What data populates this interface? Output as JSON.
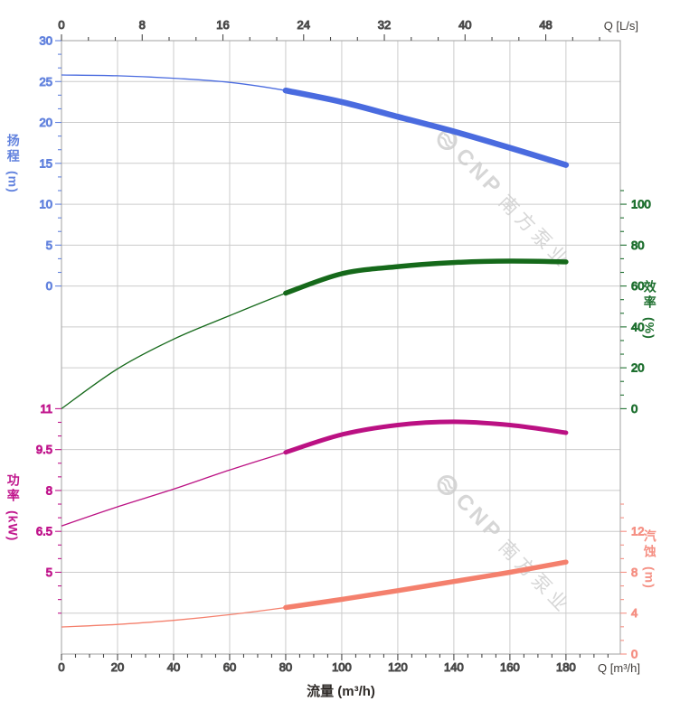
{
  "watermark": {
    "text_brand": "CNP",
    "text_company": "南方泵业"
  },
  "axes": {
    "top": {
      "title": "Q [L/s]",
      "tick_labels": [
        0,
        8,
        16,
        24,
        32,
        40,
        48
      ],
      "max_Ls": 55.4,
      "label_color": "#3f3b38"
    },
    "bottom": {
      "axis_title": "Q [m³/h]",
      "xlabel": "流量 (m³/h)",
      "tick_labels": [
        0,
        20,
        40,
        60,
        80,
        100,
        120,
        140,
        160,
        180
      ],
      "max": 199.4,
      "label_color": "#3f3b38"
    },
    "head": {
      "title": "扬程",
      "unit": "(m)",
      "tick_labels": [
        30,
        25,
        20,
        15,
        10,
        5,
        0
      ],
      "range": [
        0,
        30
      ],
      "color": "#6383de",
      "curve_color": "#4a6bdf"
    },
    "efficiency": {
      "title": "效率",
      "unit": "(%)",
      "tick_labels": [
        100,
        80,
        60,
        40,
        20,
        0
      ],
      "range": [
        0,
        100
      ],
      "color": "#1f7030",
      "curve_color": "#15691a"
    },
    "power": {
      "title": "功率",
      "unit": "(kW)",
      "tick_labels": [
        11,
        9.5,
        8,
        6.5,
        5
      ],
      "range": [
        5,
        11
      ],
      "color": "#c0158c",
      "curve_color": "#bb1183"
    },
    "npsh": {
      "title": "汽蚀",
      "unit": "(m)",
      "tick_labels": [
        12,
        8,
        4,
        0
      ],
      "range": [
        0,
        12
      ],
      "color": "#f59185",
      "curve_color": "#f4806d"
    }
  },
  "chart_data": {
    "type": "line",
    "xlabel": "流量 (m³/h)",
    "x_unit_bottom": "m³/h",
    "x_unit_top": "L/s",
    "x": [
      0,
      20,
      40,
      60,
      80,
      100,
      120,
      140,
      160,
      180
    ],
    "xlim_bottom": [
      0,
      199.4
    ],
    "duty_range_start": 80,
    "grid": "on",
    "series": [
      {
        "name": "head",
        "label": "扬程",
        "unit": "m",
        "axis": "head",
        "ylim": [
          0,
          30
        ],
        "values": [
          25.8,
          25.7,
          25.4,
          24.9,
          23.9,
          22.5,
          20.7,
          18.9,
          16.9,
          14.8
        ]
      },
      {
        "name": "efficiency",
        "label": "效率",
        "unit": "%",
        "axis": "efficiency",
        "ylim": [
          0,
          100
        ],
        "values": [
          0,
          19.5,
          34,
          45.5,
          56.5,
          66,
          69.5,
          71.5,
          72.2,
          71.8
        ]
      },
      {
        "name": "power",
        "label": "功率",
        "unit": "kW",
        "axis": "power",
        "ylim": [
          5,
          11
        ],
        "values": [
          6.7,
          7.4,
          8.05,
          8.75,
          9.4,
          10.05,
          10.4,
          10.52,
          10.4,
          10.12
        ]
      },
      {
        "name": "npsh",
        "label": "汽蚀",
        "unit": "m",
        "axis": "npsh",
        "ylim": [
          0,
          12
        ],
        "values": [
          2.65,
          2.9,
          3.3,
          3.85,
          4.55,
          5.35,
          6.2,
          7.1,
          8.0,
          9.0
        ]
      }
    ]
  }
}
